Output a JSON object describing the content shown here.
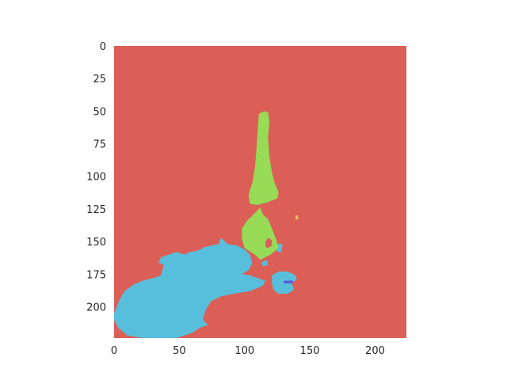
{
  "chart_data": {
    "type": "heatmap",
    "title": "",
    "xlabel": "",
    "ylabel": "",
    "xlim": [
      0,
      224
    ],
    "ylim": [
      224,
      0
    ],
    "grid": false,
    "x_ticks": [
      0,
      50,
      100,
      150,
      200
    ],
    "y_ticks": [
      0,
      25,
      50,
      75,
      100,
      125,
      150,
      175,
      200
    ],
    "x_tick_labels": [
      "0",
      "50",
      "100",
      "150",
      "200"
    ],
    "y_tick_labels": [
      "0",
      "25",
      "50",
      "75",
      "100",
      "125",
      "150",
      "175",
      "200"
    ],
    "background_class_color": "#db5f57",
    "regions": [
      {
        "color": "#57bfdb",
        "polygon": [
          [
            0,
            205
          ],
          [
            4,
            195
          ],
          [
            8,
            188
          ],
          [
            15,
            183
          ],
          [
            22,
            180
          ],
          [
            30,
            178
          ],
          [
            36,
            176
          ],
          [
            38,
            168
          ],
          [
            34,
            166
          ],
          [
            36,
            162
          ],
          [
            42,
            160
          ],
          [
            48,
            158
          ],
          [
            54,
            160
          ],
          [
            58,
            158
          ],
          [
            64,
            157
          ],
          [
            70,
            154
          ],
          [
            80,
            152
          ],
          [
            82,
            147
          ],
          [
            87,
            152
          ],
          [
            94,
            153
          ],
          [
            100,
            156
          ],
          [
            104,
            160
          ],
          [
            106,
            166
          ],
          [
            103,
            172
          ],
          [
            98,
            175
          ],
          [
            104,
            176
          ],
          [
            110,
            178
          ],
          [
            116,
            180
          ],
          [
            114,
            184
          ],
          [
            104,
            188
          ],
          [
            92,
            190
          ],
          [
            82,
            192
          ],
          [
            74,
            196
          ],
          [
            70,
            203
          ],
          [
            68,
            210
          ],
          [
            72,
            214
          ],
          [
            66,
            216
          ],
          [
            60,
            220
          ],
          [
            48,
            224
          ],
          [
            38,
            224
          ],
          [
            22,
            224
          ],
          [
            10,
            222
          ],
          [
            3,
            216
          ],
          [
            0,
            210
          ]
        ]
      },
      {
        "color": "#57bfdb",
        "polygon": [
          [
            121,
            176
          ],
          [
            126,
            173
          ],
          [
            133,
            173
          ],
          [
            139,
            176
          ],
          [
            140,
            179
          ],
          [
            136,
            182
          ],
          [
            138,
            187
          ],
          [
            133,
            190
          ],
          [
            126,
            190
          ],
          [
            122,
            187
          ],
          [
            121,
            182
          ]
        ]
      },
      {
        "color": "#57bfdb",
        "polygon": [
          [
            113,
            166
          ],
          [
            117,
            164
          ],
          [
            118,
            168
          ],
          [
            114,
            169
          ]
        ]
      },
      {
        "color": "#57bfdb",
        "polygon": [
          [
            124,
            154
          ],
          [
            127,
            151
          ],
          [
            129,
            153
          ],
          [
            128,
            158
          ],
          [
            125,
            158
          ]
        ]
      },
      {
        "color": "#97db57",
        "polygon": [
          [
            103,
            114
          ],
          [
            106,
            105
          ],
          [
            108,
            93
          ],
          [
            109,
            80
          ],
          [
            110,
            65
          ],
          [
            111,
            52
          ],
          [
            115,
            50
          ],
          [
            118,
            51
          ],
          [
            119,
            58
          ],
          [
            118,
            70
          ],
          [
            119,
            85
          ],
          [
            121,
            97
          ],
          [
            123,
            105
          ],
          [
            126,
            112
          ],
          [
            125,
            117
          ],
          [
            117,
            120
          ],
          [
            110,
            122
          ],
          [
            104,
            121
          ]
        ]
      },
      {
        "color": "#97db57",
        "polygon": [
          [
            109,
            127
          ],
          [
            112,
            124
          ],
          [
            114,
            129
          ],
          [
            118,
            133
          ],
          [
            121,
            140
          ],
          [
            124,
            148
          ],
          [
            126,
            155
          ],
          [
            120,
            160
          ],
          [
            112,
            164
          ],
          [
            108,
            160
          ],
          [
            100,
            155
          ],
          [
            98,
            148
          ],
          [
            98,
            140
          ],
          [
            102,
            134
          ],
          [
            106,
            130
          ]
        ]
      },
      {
        "color": "#db5f57",
        "polygon": [
          [
            116,
            150
          ],
          [
            118,
            147
          ],
          [
            121,
            149
          ],
          [
            121,
            153
          ],
          [
            118,
            155
          ],
          [
            116,
            154
          ]
        ]
      },
      {
        "color": "#5757db",
        "polygon": [
          [
            130,
            180
          ],
          [
            137,
            180
          ],
          [
            137,
            182
          ],
          [
            130,
            182
          ]
        ]
      },
      {
        "color": "#dbc257",
        "polygon": [
          [
            139,
            130
          ],
          [
            141,
            130
          ],
          [
            141,
            133
          ],
          [
            139,
            133
          ]
        ]
      }
    ]
  }
}
